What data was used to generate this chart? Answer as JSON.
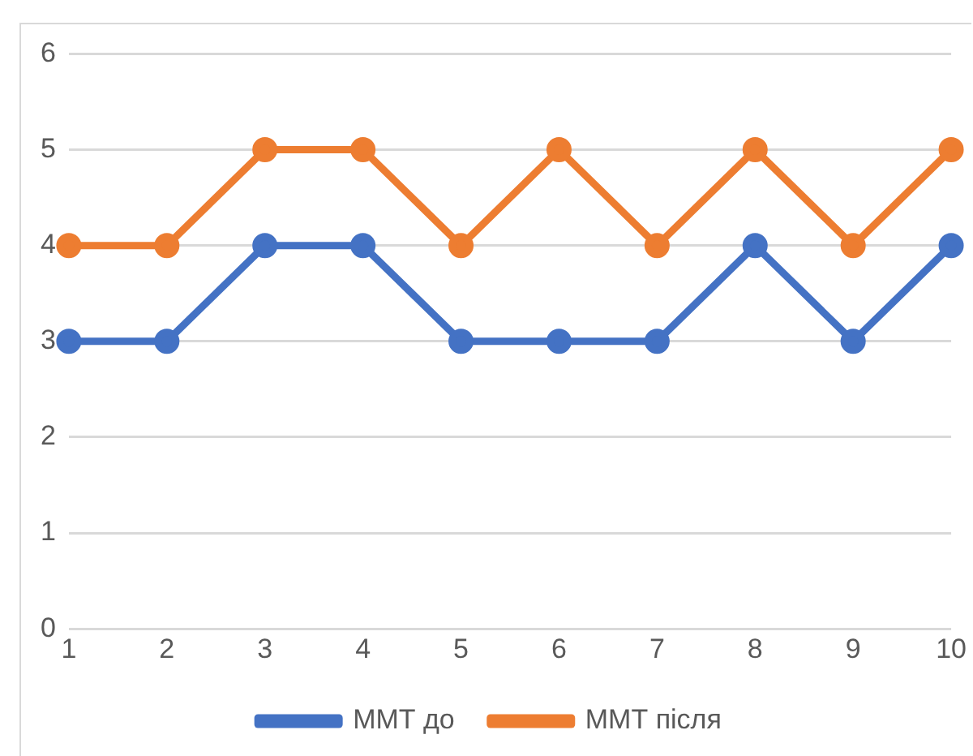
{
  "chart_data": {
    "type": "line",
    "x": [
      1,
      2,
      3,
      4,
      5,
      6,
      7,
      8,
      9,
      10
    ],
    "series": [
      {
        "name": "ММТ до",
        "color": "#4472c4",
        "values": [
          3,
          3,
          4,
          4,
          3,
          3,
          3,
          4,
          3,
          4
        ]
      },
      {
        "name": "ММТ після",
        "color": "#ed7d31",
        "values": [
          4,
          4,
          5,
          5,
          4,
          5,
          4,
          5,
          4,
          5
        ]
      }
    ],
    "xlim": [
      1,
      10
    ],
    "xticks": [
      1,
      2,
      3,
      4,
      5,
      6,
      7,
      8,
      9,
      10
    ],
    "ylim": [
      0,
      6
    ],
    "yticks": [
      0,
      1,
      2,
      3,
      4,
      5,
      6
    ],
    "grid": "y",
    "legend": "bottom",
    "marker": "circle",
    "line_style": "solid"
  }
}
